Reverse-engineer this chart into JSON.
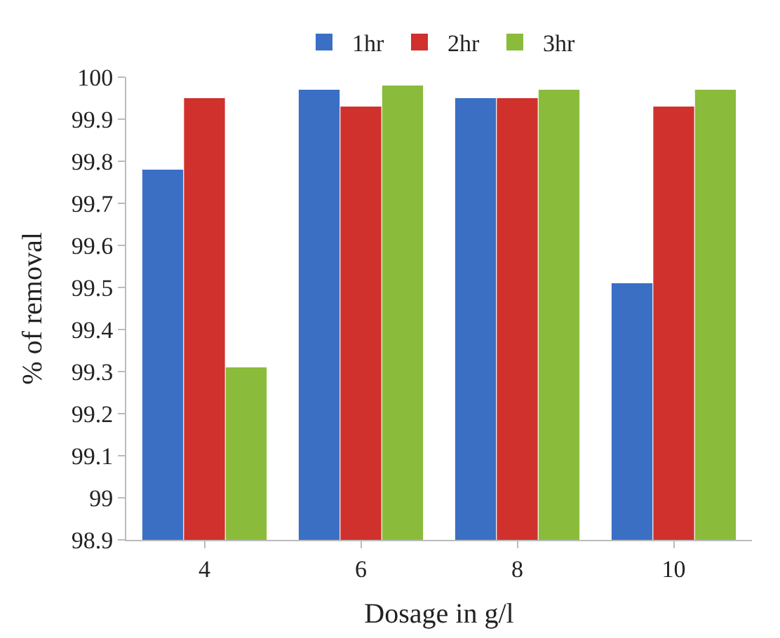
{
  "chart_data": {
    "type": "bar",
    "xlabel": "Dosage in g/l",
    "ylabel": "% of removal",
    "categories": [
      "4",
      "6",
      "8",
      "10"
    ],
    "series": [
      {
        "name": "1hr",
        "color": "#3a6fc4",
        "values": [
          99.78,
          99.97,
          99.95,
          99.51
        ]
      },
      {
        "name": "2hr",
        "color": "#d0312d",
        "values": [
          99.95,
          99.93,
          99.95,
          99.93
        ]
      },
      {
        "name": "3hr",
        "color": "#8bbb3a",
        "values": [
          99.31,
          99.98,
          99.97,
          99.97
        ]
      }
    ],
    "ylim": [
      98.9,
      100
    ],
    "yticks": [
      98.9,
      99,
      99.1,
      99.2,
      99.3,
      99.4,
      99.5,
      99.6,
      99.7,
      99.8,
      99.9,
      100
    ],
    "grid": false,
    "legend": "top"
  }
}
